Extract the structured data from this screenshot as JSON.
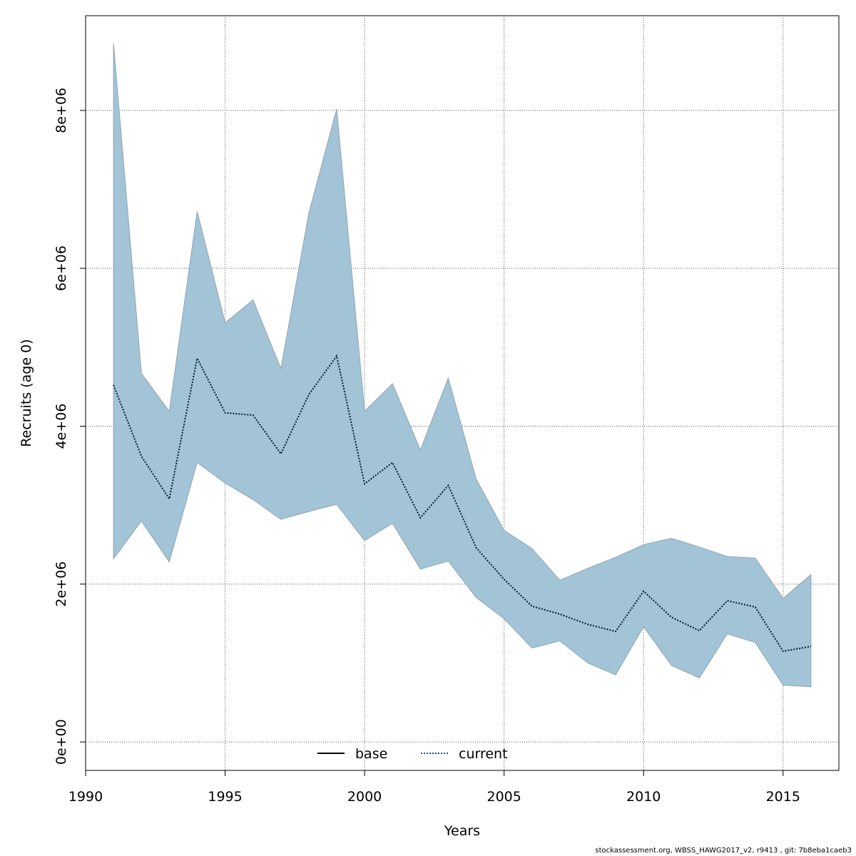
{
  "footer": "stockassessment.org, WBSS_HAWG2017_v2, r9413 , git: 7b8eba1caeb3",
  "chart_data": {
    "type": "line",
    "xlabel": "Years",
    "ylabel": "Recruits (age 0)",
    "xlim": [
      1990,
      2017
    ],
    "ylim": [
      -360000,
      9200000
    ],
    "x_ticks": [
      1990,
      1995,
      2000,
      2005,
      2010,
      2015
    ],
    "y_ticks": [
      0,
      2000000,
      4000000,
      6000000,
      8000000
    ],
    "y_tick_labels": [
      "0e+00",
      "2e+06",
      "4e+06",
      "6e+06",
      "8e+06"
    ],
    "grid": true,
    "legend": {
      "placement": "bottom-center",
      "entries": [
        {
          "label": "base",
          "style": "solid",
          "color": "#000000"
        },
        {
          "label": "current",
          "style": "dotted",
          "color": "#08519c"
        }
      ]
    },
    "band_color": "#a3c4d6",
    "x": [
      1991,
      1992,
      1993,
      1994,
      1995,
      1996,
      1997,
      1998,
      1999,
      2000,
      2001,
      2002,
      2003,
      2004,
      2005,
      2006,
      2007,
      2008,
      2009,
      2010,
      2011,
      2012,
      2013,
      2014,
      2015,
      2016
    ],
    "series": [
      {
        "name": "current",
        "values": [
          4520000,
          3620000,
          3080000,
          4860000,
          4170000,
          4140000,
          3650000,
          4400000,
          4890000,
          3270000,
          3540000,
          2840000,
          3250000,
          2460000,
          2060000,
          1720000,
          1620000,
          1490000,
          1400000,
          1910000,
          1580000,
          1410000,
          1790000,
          1710000,
          1150000,
          1210000
        ],
        "lower": [
          2320000,
          2800000,
          2280000,
          3540000,
          3280000,
          3070000,
          2820000,
          2920000,
          3010000,
          2550000,
          2770000,
          2190000,
          2290000,
          1830000,
          1560000,
          1190000,
          1280000,
          1000000,
          850000,
          1460000,
          970000,
          810000,
          1370000,
          1260000,
          720000,
          700000
        ],
        "upper": [
          8850000,
          4670000,
          4190000,
          6720000,
          5310000,
          5600000,
          4730000,
          6700000,
          8020000,
          4190000,
          4540000,
          3700000,
          4610000,
          3330000,
          2680000,
          2450000,
          2050000,
          2200000,
          2340000,
          2500000,
          2580000,
          2470000,
          2350000,
          2330000,
          1820000,
          2120000
        ]
      }
    ]
  }
}
